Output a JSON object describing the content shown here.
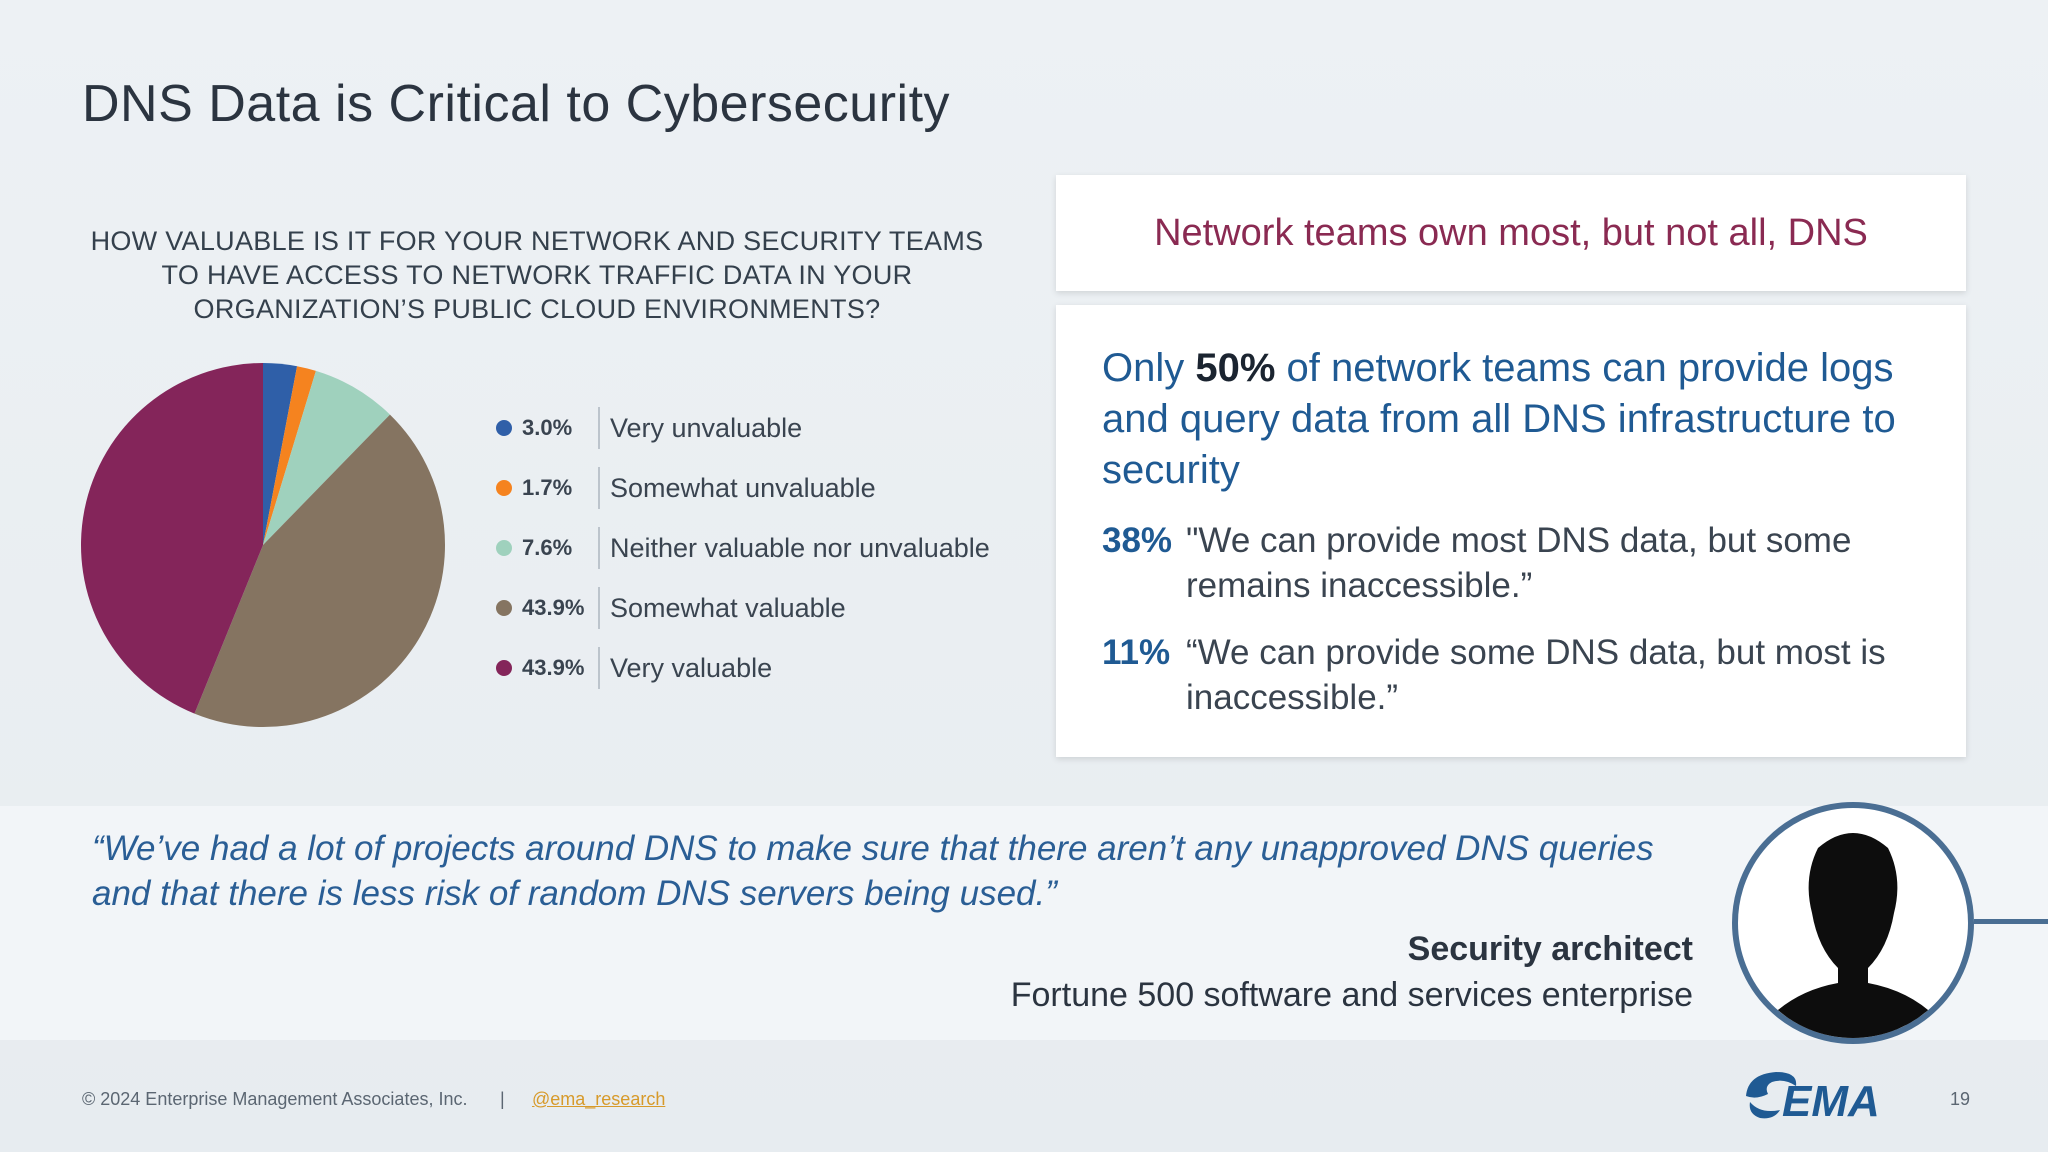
{
  "slide": {
    "title": "DNS Data is Critical to Cybersecurity",
    "question_lines": [
      "HOW VALUABLE IS IT FOR YOUR NETWORK AND SECURITY TEAMS",
      "TO HAVE ACCESS TO NETWORK TRAFFIC DATA IN YOUR",
      "ORGANIZATION’S PUBLIC CLOUD ENVIRONMENTS?"
    ]
  },
  "chart_data": {
    "type": "pie",
    "categories": [
      "Very unvaluable",
      "Somewhat unvaluable",
      "Neither valuable nor unvaluable",
      "Somewhat valuable",
      "Very valuable"
    ],
    "values": [
      3.0,
      1.7,
      7.6,
      43.9,
      43.9
    ],
    "value_labels": [
      "3.0%",
      "1.7%",
      "7.6%",
      "43.9%",
      "43.9%"
    ],
    "colors": [
      "#2f5fa8",
      "#f5831f",
      "#9fd1bd",
      "#857461",
      "#84255a"
    ],
    "legend_placement": "right"
  },
  "panel": {
    "header": "Network teams own most, but not all, DNS",
    "lead_prefix": "Only ",
    "lead_bold": "50%",
    "lead_suffix": " of network teams can provide logs and query data from all DNS infrastructure to security",
    "stats": [
      {
        "value": "38%",
        "text": "\"We can provide most DNS data, but some remains inaccessible.”"
      },
      {
        "value": "11%",
        "text": "“We can provide some DNS data, but most is inaccessible.”"
      }
    ]
  },
  "quote": {
    "text": "“We’ve had a lot of projects around DNS to make sure that there aren’t any unapproved DNS queries and that there is less risk of random DNS servers being used.”",
    "role": "Security architect",
    "org": "Fortune 500 software and services enterprise",
    "avatar_icon": "person-silhouette-icon"
  },
  "footer": {
    "copyright": "© 2024 Enterprise Management Associates, Inc.",
    "separator": "|",
    "handle": "@ema_research",
    "logo_text": "EMA",
    "page_number": "19"
  }
}
